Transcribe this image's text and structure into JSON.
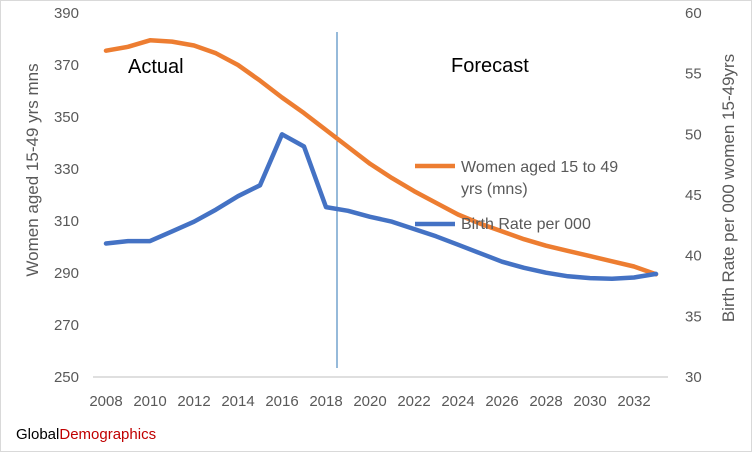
{
  "chart_data": {
    "type": "line",
    "x": [
      2008,
      2009,
      2010,
      2011,
      2012,
      2013,
      2014,
      2015,
      2016,
      2017,
      2018,
      2019,
      2020,
      2021,
      2022,
      2023,
      2024,
      2025,
      2026,
      2027,
      2028,
      2029,
      2030,
      2031,
      2032,
      2033
    ],
    "x_tick_labels": [
      "2008",
      "2010",
      "2012",
      "2014",
      "2016",
      "2018",
      "2020",
      "2022",
      "2024",
      "2026",
      "2028",
      "2030",
      "2032"
    ],
    "series": [
      {
        "name": "Women aged 15 to 49 yrs (mns)",
        "axis": "left",
        "color": "#ed7d31",
        "values": [
          375.5,
          377,
          379.5,
          379,
          377.5,
          374.5,
          370,
          364,
          357.5,
          351.5,
          345,
          338.5,
          332,
          326.5,
          321.5,
          317,
          312.5,
          309,
          306,
          303,
          300.5,
          298.5,
          296.5,
          294.5,
          292.5,
          289.5
        ]
      },
      {
        "name": "Birth Rate per 000",
        "axis": "right",
        "color": "#4472c4",
        "values": [
          41,
          41.2,
          41.2,
          42,
          42.8,
          43.8,
          44.9,
          45.8,
          50,
          49,
          44,
          43.7,
          43.2,
          42.8,
          42.2,
          41.6,
          40.9,
          40.2,
          39.5,
          39,
          38.6,
          38.3,
          38.15,
          38.1,
          38.2,
          38.5
        ]
      }
    ],
    "y_left": {
      "label": "Women aged 15-49 yrs  mns",
      "range": [
        250,
        390
      ],
      "ticks": [
        "250",
        "270",
        "290",
        "310",
        "330",
        "350",
        "370",
        "390"
      ]
    },
    "y_right": {
      "label": "Birth Rate per 000 women 15-49yrs",
      "range": [
        30,
        60
      ],
      "ticks": [
        "30",
        "35",
        "40",
        "45",
        "50",
        "55",
        "60"
      ]
    },
    "x_range": [
      2008,
      2033
    ],
    "divider_year": 2018.5,
    "annotations": {
      "actual": "Actual",
      "forecast": "Forecast"
    },
    "grid": false,
    "legend": "right"
  },
  "footer": {
    "brand_part1": "Global",
    "brand_part2": "Demographics"
  }
}
